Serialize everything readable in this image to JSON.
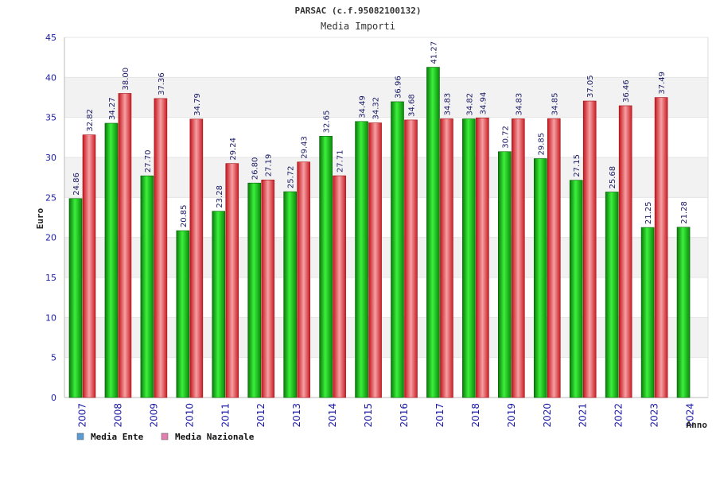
{
  "chart_data": {
    "type": "bar",
    "title": "PARSAC (c.f.95082100132)",
    "subtitle": "Media Importi",
    "xlabel": "Anno",
    "ylabel": "Euro",
    "ylim": [
      0,
      45
    ],
    "yticks": [
      0,
      5,
      10,
      15,
      20,
      25,
      30,
      35,
      40,
      45
    ],
    "grid": true,
    "legend_position": "bottom-left",
    "categories": [
      "2007",
      "2008",
      "2009",
      "2010",
      "2011",
      "2012",
      "2013",
      "2014",
      "2015",
      "2016",
      "2017",
      "2018",
      "2019",
      "2020",
      "2021",
      "2022",
      "2023",
      "2024"
    ],
    "series": [
      {
        "name": "Media Ente",
        "color": "#1fc41f",
        "legend_color": "#5b9bd5",
        "values": [
          24.86,
          34.27,
          27.7,
          20.85,
          23.28,
          26.8,
          25.72,
          32.65,
          34.49,
          36.96,
          41.27,
          34.82,
          30.72,
          29.85,
          27.15,
          25.68,
          21.25,
          21.28
        ],
        "labels": [
          "24.86",
          "34.27",
          "27.70",
          "20.85",
          "23.28",
          "26.80",
          "25.72",
          "32.65",
          "34.49",
          "36.96",
          "41.27",
          "34.82",
          "30.72",
          "29.85",
          "27.15",
          "25.68",
          "21.25",
          "21.28"
        ]
      },
      {
        "name": "Media Nazionale",
        "color": "#e8333a",
        "legend_color": "#e07fb0",
        "values": [
          32.82,
          38.0,
          37.36,
          34.79,
          29.24,
          27.19,
          29.43,
          27.71,
          34.32,
          34.68,
          34.83,
          34.94,
          34.83,
          34.85,
          37.05,
          36.46,
          37.49,
          null
        ],
        "labels": [
          "32.82",
          "38.00",
          "37.36",
          "34.79",
          "29.24",
          "27.19",
          "29.43",
          "27.71",
          "34.32",
          "34.68",
          "34.83",
          "34.94",
          "34.83",
          "34.85",
          "37.05",
          "36.46",
          "37.49",
          null
        ]
      }
    ]
  }
}
